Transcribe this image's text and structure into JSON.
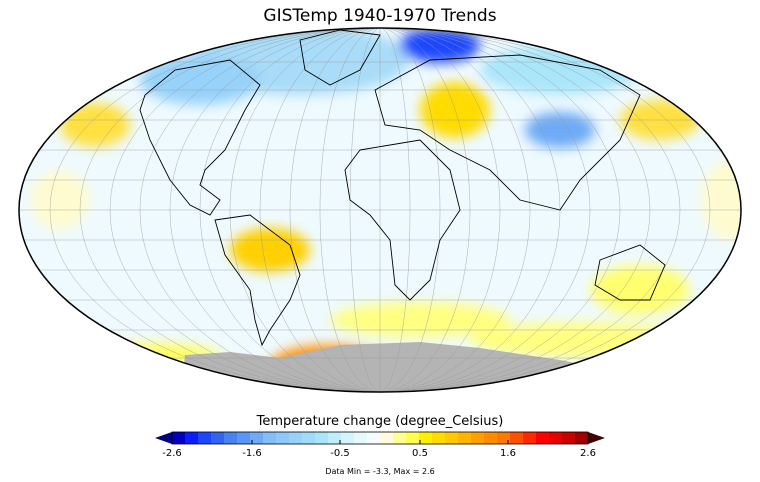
{
  "title": "GISTemp 1940-1970 Trends",
  "colorbar": {
    "label": "Temperature change (degree_Celsius)",
    "ticks": [
      "-2.6",
      "-1.6",
      "-0.5",
      "0.5",
      "1.6",
      "2.6"
    ],
    "range": [
      -2.6,
      2.6
    ],
    "colors": [
      "#0000c0",
      "#0a1eff",
      "#1e46ff",
      "#3264f0",
      "#4682f0",
      "#5a96f5",
      "#6eaaf5",
      "#82bef8",
      "#8cc8fa",
      "#96d2fa",
      "#a0dcfa",
      "#aae6fa",
      "#bef0fc",
      "#d2f5fc",
      "#e6fafe",
      "#f5fcff",
      "#fffae0",
      "#ffff96",
      "#ffff50",
      "#fff000",
      "#ffdc00",
      "#ffc800",
      "#ffb400",
      "#ffa000",
      "#ff8c00",
      "#ff7800",
      "#ff5000",
      "#ff2800",
      "#ff0000",
      "#e60000",
      "#c80000",
      "#a00000"
    ],
    "under_color": "#000080",
    "over_color": "#400000"
  },
  "data_summary": "Data Min = -3.3, Max = 2.6",
  "map": {
    "projection": "Mollweide",
    "missing_color": "#b4b4b4"
  }
}
